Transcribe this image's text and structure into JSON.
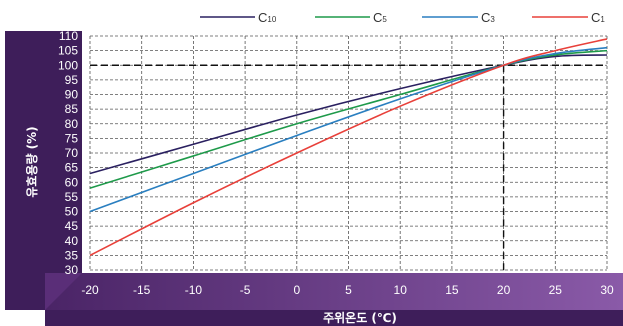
{
  "chart_data": {
    "type": "line",
    "title": "",
    "xlabel": "주위온도 (℃)",
    "ylabel": "유효용량 (%)",
    "xlim": [
      -20,
      30
    ],
    "ylim": [
      30,
      110
    ],
    "xticks": [
      -20,
      -15,
      -10,
      -5,
      0,
      5,
      10,
      15,
      20,
      25,
      30
    ],
    "yticks": [
      30,
      35,
      40,
      45,
      50,
      55,
      60,
      65,
      70,
      75,
      80,
      85,
      90,
      95,
      100,
      105,
      110
    ],
    "grid": true,
    "legend_position": "top",
    "reference_lines": {
      "x": 20,
      "y": 100
    },
    "series": [
      {
        "name": "C10",
        "label_main": "C",
        "label_sub": "10",
        "color": "#2a2060",
        "x": [
          -20,
          -10,
          0,
          10,
          20,
          25,
          30
        ],
        "y": [
          63,
          73,
          83,
          92,
          100,
          103,
          103.5
        ]
      },
      {
        "name": "C5",
        "label_main": "C",
        "label_sub": "5",
        "color": "#1e9a4a",
        "x": [
          -20,
          -10,
          0,
          10,
          20,
          25,
          30
        ],
        "y": [
          58,
          69,
          80,
          90,
          100,
          103.5,
          105
        ]
      },
      {
        "name": "C3",
        "label_main": "C",
        "label_sub": "3",
        "color": "#2a7fc0",
        "x": [
          -20,
          -10,
          0,
          10,
          20,
          25,
          30
        ],
        "y": [
          50,
          63,
          76,
          88.5,
          100,
          104,
          106
        ]
      },
      {
        "name": "C1",
        "label_main": "C",
        "label_sub": "1",
        "color": "#e8403a",
        "x": [
          -20,
          -10,
          0,
          10,
          20,
          25,
          30
        ],
        "y": [
          35,
          53,
          70,
          86,
          100,
          105,
          109
        ]
      }
    ]
  },
  "colors": {
    "frame_dark": "#3e1e5a",
    "frame_mid": "#6a3a88",
    "plot_bg": "#ffffff",
    "grid": "#555555",
    "reference": "#111111"
  }
}
